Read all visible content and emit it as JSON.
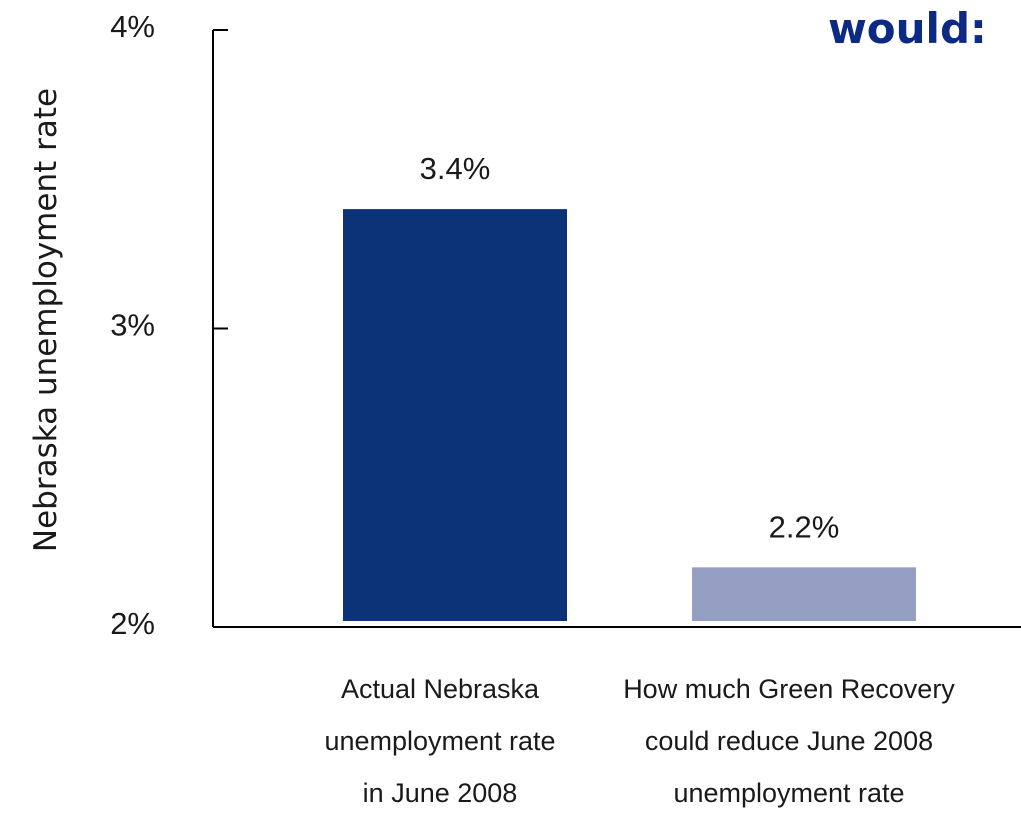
{
  "heading": "would:",
  "chart_data": {
    "type": "bar",
    "categories": [
      [
        "Actual Nebraska",
        "unemployment rate",
        "in June 2008"
      ],
      [
        "How much Green Recovery",
        "could reduce June 2008",
        "unemployment rate"
      ]
    ],
    "values": [
      3.4,
      2.2
    ],
    "data_labels": [
      "3.4%",
      "2.2%"
    ],
    "bar_colors": [
      "#0c3378",
      "#959fc4"
    ],
    "title": "",
    "xlabel": "",
    "ylabel": "Nebraska unemployment rate",
    "ylim": [
      2,
      4
    ],
    "yticks": [
      2,
      3,
      4
    ],
    "ytick_labels": [
      "2%",
      "3%",
      "4%"
    ],
    "grid": false,
    "legend": "none"
  }
}
